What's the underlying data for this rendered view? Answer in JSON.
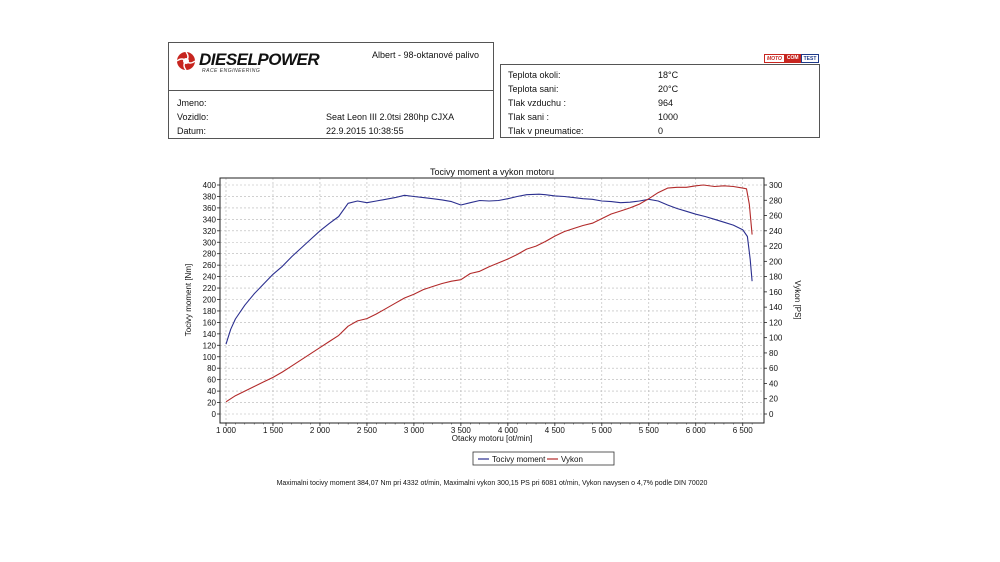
{
  "logo": {
    "name": "DIESELPOWER",
    "sub": "RACE ENGINEERING"
  },
  "header": {
    "fuel": "Albert - 98-oktanové palivo"
  },
  "badge": {
    "left": "MOTO",
    "middle": "COM",
    "right": "TEST"
  },
  "vehicle": {
    "rows": [
      {
        "label": "Jmeno:",
        "value": ""
      },
      {
        "label": "Vozidlo:",
        "value": "Seat Leon III 2.0tsi 280hp CJXA"
      },
      {
        "label": "Datum:",
        "value": "22.9.2015 10:38:55"
      }
    ]
  },
  "conditions": {
    "rows": [
      {
        "label": "Teplota okoli:",
        "value": "18°C"
      },
      {
        "label": "Teplota sani:",
        "value": "20°C"
      },
      {
        "label": "Tlak vzduchu :",
        "value": "964"
      },
      {
        "label": "Tlak sani :",
        "value": "1000"
      },
      {
        "label": "Tlak v pneumatice:",
        "value": "0"
      }
    ]
  },
  "footer": {
    "text": "Maximalni tocivy moment 384,07 Nm pri 4332 ot/min,  Maximalni vykon 300,15 PS pri 6081 ot/min,  Vykon navysen o 4,7% podle DIN 70020"
  },
  "chart_data": {
    "type": "line",
    "title": "Tocivy moment a vykon motoru",
    "xlabel": "Otacky motoru [ot/min]",
    "ylabel": "Tocivy moment [Nm]",
    "y2label": "Vykon [PS]",
    "xlim": [
      1000,
      6620
    ],
    "ylim": [
      0,
      400
    ],
    "y2lim": [
      0,
      300
    ],
    "x_ticks": [
      1000,
      1500,
      2000,
      2500,
      3000,
      3500,
      4000,
      4500,
      5000,
      5500,
      6000,
      6500
    ],
    "x_tick_labels": [
      "1 000",
      "1 500",
      "2 000",
      "2 500",
      "3 000",
      "3 500",
      "4 000",
      "4 500",
      "5 000",
      "5 500",
      "6 000",
      "6 500"
    ],
    "y_ticks": [
      0,
      20,
      40,
      60,
      80,
      100,
      120,
      140,
      160,
      180,
      200,
      220,
      240,
      260,
      280,
      300,
      320,
      340,
      360,
      380,
      400
    ],
    "y2_ticks": [
      0,
      20,
      40,
      60,
      80,
      100,
      120,
      140,
      160,
      180,
      200,
      220,
      240,
      260,
      280,
      300
    ],
    "grid": true,
    "legend": "bottom",
    "series": [
      {
        "name": "Tocivy moment",
        "axis": "left",
        "color": "#2b2f8f",
        "x": [
          1000,
          1050,
          1100,
          1200,
          1300,
          1400,
          1500,
          1600,
          1700,
          1800,
          1900,
          2000,
          2100,
          2200,
          2300,
          2400,
          2500,
          2600,
          2700,
          2800,
          2900,
          3000,
          3100,
          3200,
          3300,
          3400,
          3500,
          3600,
          3700,
          3800,
          3900,
          4000,
          4100,
          4200,
          4332,
          4400,
          4500,
          4600,
          4700,
          4800,
          4900,
          5000,
          5100,
          5200,
          5300,
          5400,
          5500,
          5600,
          5700,
          5800,
          5900,
          6000,
          6100,
          6200,
          6300,
          6400,
          6500,
          6550,
          6580,
          6600
        ],
        "values": [
          122,
          148,
          166,
          190,
          210,
          227,
          244,
          258,
          275,
          290,
          305,
          320,
          333,
          345,
          368,
          372,
          369,
          372,
          375,
          378,
          382,
          380,
          378,
          376,
          374,
          371,
          365,
          369,
          373,
          372,
          373,
          376,
          380,
          383,
          384,
          383,
          381,
          380,
          378,
          376,
          375,
          372,
          371,
          369,
          370,
          372,
          375,
          372,
          365,
          359,
          354,
          349,
          345,
          340,
          335,
          330,
          322,
          310,
          270,
          232
        ]
      },
      {
        "name": "Vykon",
        "axis": "right",
        "color": "#b22a2a",
        "x": [
          1000,
          1100,
          1200,
          1300,
          1400,
          1500,
          1600,
          1700,
          1800,
          1900,
          2000,
          2100,
          2200,
          2300,
          2400,
          2500,
          2600,
          2700,
          2800,
          2900,
          3000,
          3100,
          3200,
          3300,
          3400,
          3500,
          3600,
          3700,
          3800,
          3900,
          4000,
          4100,
          4200,
          4300,
          4400,
          4500,
          4600,
          4700,
          4800,
          4900,
          5000,
          5100,
          5200,
          5300,
          5400,
          5500,
          5600,
          5700,
          5800,
          5900,
          6000,
          6081,
          6200,
          6300,
          6400,
          6500,
          6540,
          6570,
          6600
        ],
        "values": [
          16,
          24,
          30,
          36,
          42,
          48,
          55,
          63,
          71,
          79,
          87,
          95,
          103,
          115,
          122,
          125,
          131,
          138,
          145,
          152,
          157,
          163,
          167,
          171,
          174,
          176,
          184,
          187,
          193,
          198,
          203,
          209,
          216,
          220,
          226,
          233,
          239,
          243,
          247,
          250,
          256,
          262,
          266,
          270,
          275,
          282,
          290,
          296,
          297,
          297,
          299,
          300,
          298,
          299,
          298,
          296,
          295,
          275,
          235
        ]
      }
    ]
  }
}
